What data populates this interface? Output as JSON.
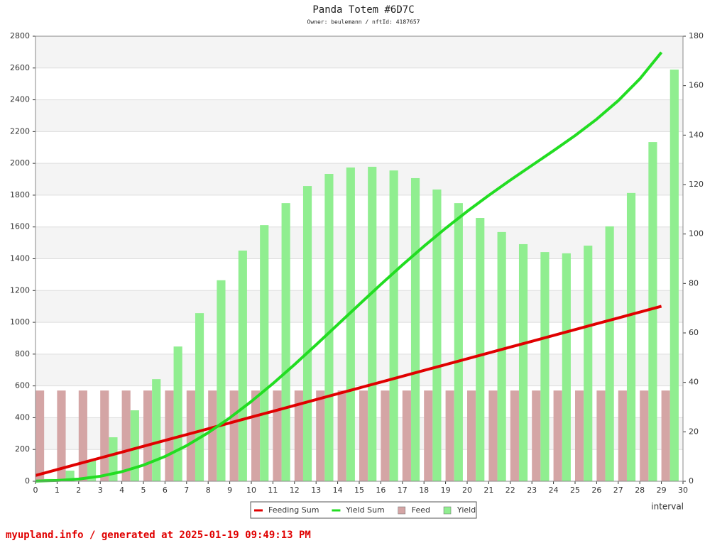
{
  "chart_data": {
    "type": "combo",
    "title": "Panda Totem #6D7C",
    "subtitle": "Owner: beulemann / nftId: 4187657",
    "x_label": "interval",
    "footer": "myupland.info / generated at 2025-01-19 09:49:13 PM",
    "x": [
      0,
      1,
      2,
      3,
      4,
      5,
      6,
      7,
      8,
      9,
      10,
      11,
      12,
      13,
      14,
      15,
      16,
      17,
      18,
      19,
      20,
      21,
      22,
      23,
      24,
      25,
      26,
      27,
      28,
      29
    ],
    "xlim": [
      0,
      30
    ],
    "xticks": [
      0,
      1,
      2,
      3,
      4,
      5,
      6,
      7,
      8,
      9,
      10,
      11,
      12,
      13,
      14,
      15,
      16,
      17,
      18,
      19,
      20,
      21,
      22,
      23,
      24,
      25,
      26,
      27,
      28,
      29,
      30
    ],
    "ylim": [
      0,
      2800
    ],
    "yticks": [
      0,
      200,
      400,
      600,
      800,
      1000,
      1200,
      1400,
      1600,
      1800,
      2000,
      2200,
      2400,
      2600,
      2800
    ],
    "y2lim": [
      0,
      180
    ],
    "y2ticks": [
      0,
      20,
      40,
      60,
      80,
      100,
      120,
      140,
      160,
      180
    ],
    "grid": true,
    "legend": "bottom",
    "series": [
      {
        "name": "Feeding Sum",
        "type": "line",
        "axis": "y",
        "color": "#e00000",
        "values": [
          36.7,
          73.4,
          110.1,
          146.8,
          183.5,
          220.2,
          256.9,
          293.6,
          330.3,
          367,
          403.7,
          440.4,
          477.1,
          513.8,
          550.5,
          587.2,
          623.9,
          660.6,
          697.3,
          734,
          770.7,
          807.4,
          844.1,
          880.8,
          917.5,
          954.2,
          990.9,
          1027.6,
          1064.3,
          1101
        ]
      },
      {
        "name": "Yield Sum",
        "type": "line",
        "axis": "y",
        "color": "#22dd22",
        "values": [
          0.9,
          5.2,
          13.8,
          31.6,
          60.3,
          101.6,
          156.1,
          224.1,
          305.4,
          398.7,
          502.3,
          614.8,
          734.2,
          858.5,
          985.4,
          1112.6,
          1238.3,
          1360.9,
          1478.9,
          1591.4,
          1697.9,
          1798.7,
          1894.6,
          1987.3,
          2079.5,
          2174.8,
          2277.9,
          2394.5,
          2531.7,
          2698.2
        ]
      },
      {
        "name": "Feed",
        "type": "bar",
        "axis": "y2",
        "color": "#d4a5a5",
        "values": [
          36.7,
          36.7,
          36.7,
          36.7,
          36.7,
          36.7,
          36.7,
          36.7,
          36.7,
          36.7,
          36.7,
          36.7,
          36.7,
          36.7,
          36.7,
          36.7,
          36.7,
          36.7,
          36.7,
          36.7,
          36.7,
          36.7,
          36.7,
          36.7,
          36.7,
          36.7,
          36.7,
          36.7,
          36.7,
          36.7
        ]
      },
      {
        "name": "Yield",
        "type": "bar",
        "axis": "y2",
        "color": "#90ee90",
        "values": [
          0.9,
          4.3,
          8.6,
          17.8,
          28.7,
          41.3,
          54.5,
          68.0,
          81.3,
          93.3,
          103.6,
          112.5,
          119.4,
          124.3,
          126.9,
          127.2,
          125.7,
          122.6,
          118.0,
          112.5,
          106.5,
          100.8,
          95.9,
          92.7,
          92.2,
          95.3,
          103.1,
          116.6,
          137.2,
          166.5
        ]
      }
    ]
  }
}
